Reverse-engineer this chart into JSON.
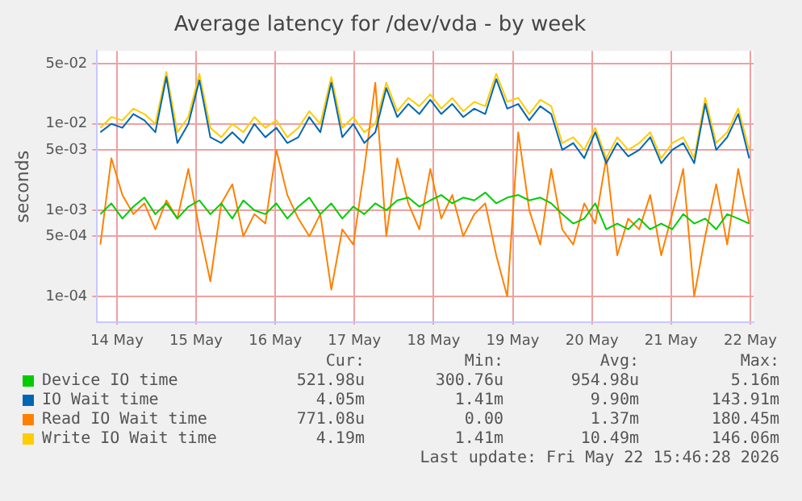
{
  "chart_data": {
    "type": "line",
    "title": "Average latency for /dev/vda - by week",
    "ylabel": "seconds",
    "log": "y",
    "grid": true,
    "legend": "bottom",
    "marker": "none",
    "line_style": "solid",
    "xlim": [
      "2026-05-13T18:00",
      "2026-05-22T01:00"
    ],
    "xticks": [
      {
        "value": "2026-05-14",
        "label": "14 May"
      },
      {
        "value": "2026-05-15",
        "label": "15 May"
      },
      {
        "value": "2026-05-16",
        "label": "16 May"
      },
      {
        "value": "2026-05-17",
        "label": "17 May"
      },
      {
        "value": "2026-05-18",
        "label": "18 May"
      },
      {
        "value": "2026-05-19",
        "label": "19 May"
      },
      {
        "value": "2026-05-20",
        "label": "20 May"
      },
      {
        "value": "2026-05-21",
        "label": "21 May"
      },
      {
        "value": "2026-05-22",
        "label": "22 May"
      }
    ],
    "ylim": [
      5e-05,
      0.07
    ],
    "yticks": [
      {
        "value": 0.0001,
        "label": "1e-04"
      },
      {
        "value": 0.0005,
        "label": "5e-04"
      },
      {
        "value": 0.001,
        "label": "1e-03"
      },
      {
        "value": 0.005,
        "label": "5e-03"
      },
      {
        "value": 0.01,
        "label": "1e-02"
      },
      {
        "value": 0.05,
        "label": "5e-02"
      }
    ],
    "x": [
      "2026-05-13T19:00",
      "2026-05-13T22:20",
      "2026-05-14T01:40",
      "2026-05-14T05:00",
      "2026-05-14T08:20",
      "2026-05-14T11:40",
      "2026-05-14T15:00",
      "2026-05-14T18:20",
      "2026-05-14T21:40",
      "2026-05-15T01:00",
      "2026-05-15T04:20",
      "2026-05-15T07:40",
      "2026-05-15T11:00",
      "2026-05-15T14:20",
      "2026-05-15T17:40",
      "2026-05-15T21:00",
      "2026-05-16T00:20",
      "2026-05-16T03:40",
      "2026-05-16T07:00",
      "2026-05-16T10:20",
      "2026-05-16T13:40",
      "2026-05-16T17:00",
      "2026-05-16T20:20",
      "2026-05-16T23:40",
      "2026-05-17T03:00",
      "2026-05-17T06:20",
      "2026-05-17T09:40",
      "2026-05-17T13:00",
      "2026-05-17T16:20",
      "2026-05-17T19:40",
      "2026-05-17T23:00",
      "2026-05-18T02:20",
      "2026-05-18T05:40",
      "2026-05-18T09:00",
      "2026-05-18T12:20",
      "2026-05-18T15:40",
      "2026-05-18T19:00",
      "2026-05-18T22:20",
      "2026-05-19T01:40",
      "2026-05-19T05:00",
      "2026-05-19T08:20",
      "2026-05-19T11:40",
      "2026-05-19T15:00",
      "2026-05-19T18:20",
      "2026-05-19T21:40",
      "2026-05-20T01:00",
      "2026-05-20T04:20",
      "2026-05-20T07:40",
      "2026-05-20T11:00",
      "2026-05-20T14:20",
      "2026-05-20T17:40",
      "2026-05-20T21:00",
      "2026-05-21T00:20",
      "2026-05-21T03:40",
      "2026-05-21T07:00",
      "2026-05-21T10:20",
      "2026-05-21T13:40",
      "2026-05-21T17:00",
      "2026-05-21T20:20",
      "2026-05-21T23:40"
    ],
    "series": [
      {
        "name": "Device IO time",
        "color": "#00cc00",
        "values": [
          0.0009,
          0.0012,
          0.0008,
          0.0011,
          0.0014,
          0.0009,
          0.0012,
          0.0008,
          0.0011,
          0.0013,
          0.0009,
          0.0012,
          0.0008,
          0.0013,
          0.001,
          0.0009,
          0.0012,
          0.0008,
          0.0011,
          0.0014,
          0.0009,
          0.0012,
          0.0008,
          0.0011,
          0.0009,
          0.0012,
          0.001,
          0.0013,
          0.0014,
          0.0011,
          0.0013,
          0.0015,
          0.0012,
          0.0014,
          0.0013,
          0.0016,
          0.0012,
          0.0014,
          0.0015,
          0.0013,
          0.0014,
          0.0012,
          0.0009,
          0.0007,
          0.0008,
          0.0012,
          0.0006,
          0.0007,
          0.0006,
          0.0008,
          0.0006,
          0.0007,
          0.0006,
          0.0009,
          0.0007,
          0.0008,
          0.0006,
          0.0009,
          0.0008,
          0.0007
        ]
      },
      {
        "name": "IO Wait time",
        "color": "#0066b3",
        "values": [
          0.008,
          0.01,
          0.009,
          0.013,
          0.011,
          0.008,
          0.035,
          0.006,
          0.01,
          0.032,
          0.007,
          0.006,
          0.008,
          0.006,
          0.01,
          0.007,
          0.009,
          0.006,
          0.007,
          0.012,
          0.008,
          0.03,
          0.007,
          0.01,
          0.006,
          0.008,
          0.026,
          0.012,
          0.017,
          0.013,
          0.019,
          0.013,
          0.017,
          0.012,
          0.015,
          0.013,
          0.033,
          0.015,
          0.017,
          0.011,
          0.016,
          0.013,
          0.005,
          0.006,
          0.004,
          0.008,
          0.0035,
          0.006,
          0.0042,
          0.005,
          0.007,
          0.0035,
          0.005,
          0.006,
          0.0035,
          0.017,
          0.005,
          0.007,
          0.013,
          0.004
        ]
      },
      {
        "name": "Read IO Wait time",
        "color": "#ff8000",
        "values": [
          0.0004,
          0.004,
          0.0015,
          0.0009,
          0.0012,
          0.0006,
          0.0013,
          0.0008,
          0.003,
          0.0006,
          0.00015,
          0.0012,
          0.002,
          0.0005,
          0.0009,
          0.0007,
          0.005,
          0.0015,
          0.0008,
          0.0005,
          0.0009,
          0.00012,
          0.0006,
          0.0004,
          0.003,
          0.03,
          0.0005,
          0.004,
          0.0012,
          0.0006,
          0.003,
          0.0008,
          0.0015,
          0.0005,
          0.0009,
          0.0012,
          0.0003,
          0.0001,
          0.008,
          0.001,
          0.0004,
          0.003,
          0.0006,
          0.0004,
          0.0012,
          0.0007,
          0.004,
          0.0003,
          0.0008,
          0.0006,
          0.0015,
          0.0003,
          0.0009,
          0.003,
          0.0001,
          0.0005,
          0.002,
          0.0004,
          0.003,
          0.0007
        ]
      },
      {
        "name": "Write IO Wait time",
        "color": "#ffcc00",
        "values": [
          0.009,
          0.012,
          0.011,
          0.015,
          0.013,
          0.01,
          0.04,
          0.008,
          0.012,
          0.038,
          0.009,
          0.007,
          0.01,
          0.008,
          0.012,
          0.009,
          0.011,
          0.007,
          0.009,
          0.014,
          0.01,
          0.035,
          0.009,
          0.012,
          0.008,
          0.01,
          0.03,
          0.014,
          0.02,
          0.016,
          0.022,
          0.015,
          0.02,
          0.014,
          0.018,
          0.016,
          0.038,
          0.018,
          0.02,
          0.013,
          0.019,
          0.016,
          0.006,
          0.007,
          0.005,
          0.009,
          0.004,
          0.007,
          0.005,
          0.006,
          0.008,
          0.004,
          0.006,
          0.007,
          0.004,
          0.02,
          0.006,
          0.008,
          0.015,
          0.005
        ]
      }
    ],
    "annotations": [
      "Cur:",
      "Min:",
      "Avg:",
      "Max:",
      "521.98u",
      "300.76u",
      "954.98u",
      "5.16m",
      "4.05m",
      "1.41m",
      "9.90m",
      "143.91m",
      "771.08u",
      "0.00",
      "1.37m",
      "180.45m",
      "4.19m",
      "1.41m",
      "10.49m",
      "146.06m",
      "Last update: Fri May 22 15:46:28 2026"
    ]
  }
}
